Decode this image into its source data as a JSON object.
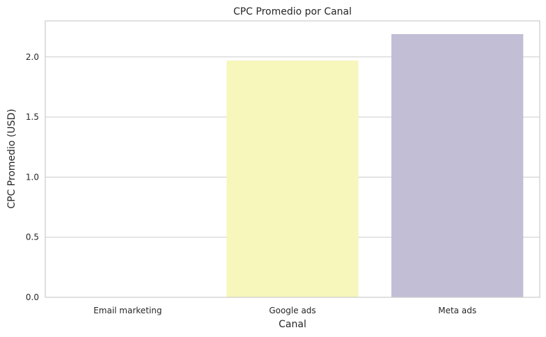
{
  "chart_data": {
    "type": "bar",
    "title": "CPC Promedio por Canal",
    "xlabel": "Canal",
    "ylabel": "CPC Promedio (USD)",
    "categories": [
      "Email marketing",
      "Google ads",
      "Meta ads"
    ],
    "values": [
      0.0,
      1.97,
      2.19
    ],
    "colors": [
      "#8dd3c7",
      "#f7f6bb",
      "#c1bed6"
    ],
    "ylim": [
      0,
      2.3
    ],
    "yticks": [
      0.0,
      0.5,
      1.0,
      1.5,
      2.0
    ],
    "ytick_labels": [
      "0.0",
      "0.5",
      "1.0",
      "1.5",
      "2.0"
    ],
    "grid": true,
    "grid_axis": "y",
    "background": "#ffffff"
  }
}
